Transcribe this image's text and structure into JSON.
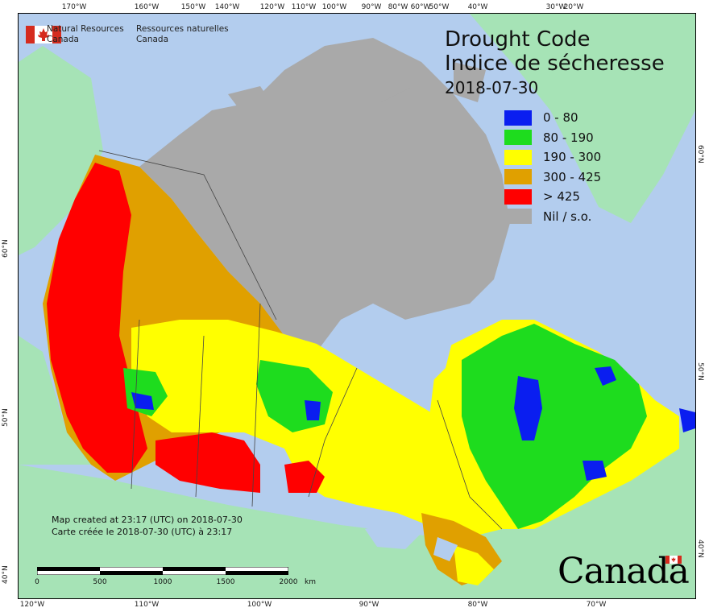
{
  "agency": {
    "name_en_line1": "Natural Resources",
    "name_en_line2": "Canada",
    "name_fr_line1": "Ressources naturelles",
    "name_fr_line2": "Canada"
  },
  "title": {
    "line1": "Drought Code",
    "line2": "Indice de sécheresse",
    "date": "2018-07-30"
  },
  "legend": [
    {
      "label": "0 - 80",
      "color": "#0a1ef0"
    },
    {
      "label": "80 - 190",
      "color": "#1edc1e"
    },
    {
      "label": "190 - 300",
      "color": "#ffff00"
    },
    {
      "label": "300 - 425",
      "color": "#e0a000"
    },
    {
      "label": "> 425",
      "color": "#ff0000"
    },
    {
      "label": "Nil / s.o.",
      "color": "#a9a9a9"
    }
  ],
  "credit": {
    "line1": "Map created at 23:17 (UTC) on 2018-07-30",
    "line2": "Carte créée le 2018-07-30 (UTC) à 23:17"
  },
  "scale": {
    "labels": [
      "0",
      "500",
      "1000",
      "1500",
      "2000"
    ],
    "unit": "km"
  },
  "ticks": {
    "top": [
      "170°W",
      "160°W",
      "150°W",
      "140°W",
      "120°W",
      "110°W",
      "100°W",
      "90°W",
      "80°W",
      "60°W",
      "50°W",
      "40°W",
      "30°W",
      "20°W"
    ],
    "bottom": [
      "120°W",
      "110°W",
      "100°W",
      "90°W",
      "80°W",
      "70°W"
    ],
    "left": [
      "60°N",
      "50°N",
      "40°N"
    ],
    "right": [
      "60°N",
      "50°N",
      "40°N"
    ]
  },
  "wordmark": "Canada",
  "colors": {
    "ocean": "#b3cdee",
    "land_other": "#a6e3b6",
    "nil": "#a9a9a9"
  }
}
